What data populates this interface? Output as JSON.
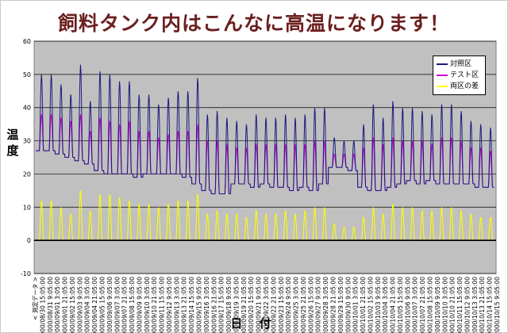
{
  "chart_data": {
    "type": "line",
    "title": "飼料タンク内はこんなに高温になります！",
    "xlabel": "日 付",
    "ylabel": "温度",
    "ylim": [
      -10,
      60
    ],
    "yticks": [
      -10,
      0,
      10,
      20,
      30,
      40,
      50,
      60
    ],
    "grid": true,
    "plot_background": "#c0c0c0",
    "legend_position": "top-right",
    "x_tick_labels": [
      "< 測定データ >",
      "2000/08/30 15:05:00",
      "2000/08/31 9:05:00",
      "2000/09/01 3:05:00",
      "2000/09/01 21:05:00",
      "2000/09/02 15:05:00",
      "2000/09/03 9:05:00",
      "2000/09/04 3:05:00",
      "2000/09/04 21:05:00",
      "2000/09/05 15:05:00",
      "2000/09/06 9:05:00",
      "2000/09/07 3:05:00",
      "2000/09/07 21:05:00",
      "2000/09/08 15:05:00",
      "2000/09/09 9:05:00",
      "2000/09/10 3:05:00",
      "2000/09/10 21:05:00",
      "2000/09/11 15:05:00",
      "2000/09/12 9:05:00",
      "2000/09/13 3:05:00",
      "2000/09/13 21:05:00",
      "2000/09/14 15:05:00",
      "2000/09/15 9:05:00",
      "2000/09/16 3:05:00",
      "2000/09/16 21:05:00",
      "2000/09/17 15:05:00",
      "2000/09/18 9:05:00",
      "2000/09/19 3:05:00",
      "2000/09/19 21:05:00",
      "2000/09/20 15:05:00",
      "2000/09/21 9:05:00",
      "2000/09/22 3:05:00",
      "2000/09/22 21:05:00",
      "2000/09/23 15:05:00",
      "2000/09/24 9:05:00",
      "2000/09/25 3:05:00",
      "2000/09/25 21:05:00",
      "2000/09/26 15:05:00",
      "2000/09/27 9:05:00",
      "2000/09/28 3:05:00",
      "2000/09/28 21:05:00",
      "2000/09/29 15:05:00",
      "2000/09/30 9:05:00",
      "2000/10/01 3:05:00",
      "2000/10/01 21:05:00",
      "2000/10/02 15:05:00",
      "2000/10/03 9:05:00",
      "2000/10/04 3:05:00",
      "2000/10/04 21:05:00",
      "2000/10/05 15:05:00",
      "2000/10/06 9:05:00",
      "2000/10/07 3:05:00",
      "2000/10/07 21:05:00",
      "2000/10/08 15:05:00",
      "2000/10/09 9:05:00",
      "2000/10/10 3:05:00",
      "2000/10/10 21:05:00",
      "2000/10/11 15:05:00",
      "2000/10/12 9:05:00",
      "2000/10/13 3:05:00",
      "2000/10/13 21:05:00",
      "2000/10/14 15:05:00",
      "2000/10/15 9:05:00"
    ],
    "days": [
      "08/30",
      "08/31",
      "09/01",
      "09/02",
      "09/03",
      "09/04",
      "09/05",
      "09/06",
      "09/07",
      "09/08",
      "09/09",
      "09/10",
      "09/11",
      "09/12",
      "09/13",
      "09/14",
      "09/15",
      "09/16",
      "09/17",
      "09/18",
      "09/19",
      "09/20",
      "09/21",
      "09/22",
      "09/23",
      "09/24",
      "09/25",
      "09/26",
      "09/27",
      "09/28",
      "09/29",
      "09/30",
      "10/01",
      "10/02",
      "10/03",
      "10/04",
      "10/05",
      "10/06",
      "10/07",
      "10/08",
      "10/09",
      "10/10",
      "10/11",
      "10/12",
      "10/13",
      "10/14",
      "10/15"
    ],
    "series": [
      {
        "name": "対照区",
        "color": "#1a1a80",
        "daily_max": [
          50,
          50,
          47,
          44,
          53,
          42,
          51,
          50,
          48,
          48,
          44,
          44,
          41,
          43,
          45,
          45,
          49,
          38,
          39,
          37,
          36,
          35,
          38,
          37,
          37,
          38,
          37,
          38,
          40,
          40,
          31,
          30,
          30,
          35,
          41,
          37,
          42,
          40,
          40,
          39,
          38,
          41,
          41,
          39,
          36,
          35,
          34
        ],
        "daily_min": [
          27,
          27,
          26,
          25,
          24,
          23,
          21,
          20,
          20,
          20,
          19,
          20,
          20,
          20,
          20,
          19,
          17,
          15,
          14,
          14,
          17,
          17,
          16,
          17,
          16,
          16,
          15,
          16,
          15,
          17,
          22,
          22,
          21,
          16,
          15,
          15,
          16,
          17,
          18,
          17,
          18,
          17,
          17,
          17,
          17,
          16,
          16
        ]
      },
      {
        "name": "テスト区",
        "color": "#cc00cc",
        "daily_max": [
          38,
          38,
          37,
          36,
          38,
          33,
          37,
          36,
          35,
          36,
          33,
          33,
          31,
          32,
          33,
          33,
          35,
          30,
          30,
          29,
          28,
          28,
          29,
          29,
          29,
          29,
          29,
          29,
          30,
          30,
          26,
          26,
          26,
          28,
          31,
          29,
          31,
          30,
          30,
          30,
          29,
          31,
          31,
          30,
          28,
          28,
          27
        ],
        "daily_min": [
          27,
          27,
          26,
          25,
          24,
          23,
          21,
          20,
          20,
          20,
          19,
          20,
          20,
          20,
          20,
          19,
          17,
          15,
          14,
          14,
          17,
          17,
          16,
          17,
          16,
          16,
          15,
          16,
          15,
          17,
          22,
          22,
          21,
          16,
          15,
          15,
          16,
          17,
          18,
          17,
          18,
          17,
          17,
          17,
          17,
          16,
          16
        ]
      },
      {
        "name": "両区の差",
        "color": "#ffff00",
        "daily_max": [
          12,
          12,
          10,
          8,
          15,
          9,
          14,
          14,
          13,
          12,
          11,
          11,
          10,
          11,
          12,
          12,
          14,
          8,
          9,
          8,
          8,
          7,
          9,
          8,
          8,
          9,
          8,
          9,
          10,
          10,
          5,
          4,
          4,
          7,
          10,
          8,
          11,
          10,
          10,
          9,
          9,
          10,
          10,
          9,
          8,
          7,
          7
        ],
        "daily_min": [
          0,
          0,
          0,
          0,
          0,
          0,
          0,
          0,
          0,
          0,
          0,
          0,
          0,
          0,
          0,
          0,
          0,
          0,
          0,
          0,
          0,
          0,
          0,
          0,
          0,
          0,
          0,
          0,
          0,
          0,
          0,
          0,
          0,
          0,
          0,
          0,
          0,
          0,
          0,
          0,
          0,
          0,
          0,
          0,
          0,
          0,
          0
        ]
      }
    ]
  }
}
